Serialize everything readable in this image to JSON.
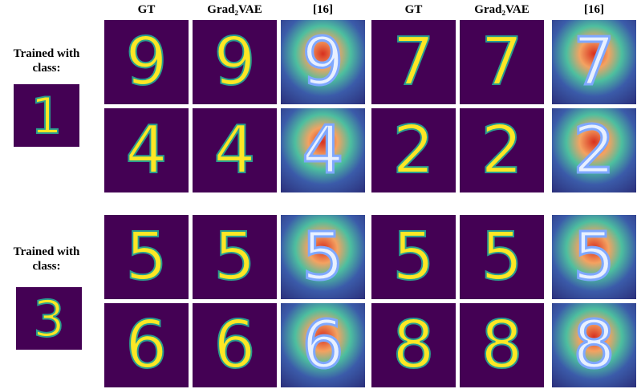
{
  "headers": [
    "GT",
    "Grad₂VAE",
    "[16]",
    "GT",
    "Grad₂VAE",
    "[16]"
  ],
  "groups": [
    {
      "label": "Trained with class:",
      "class": "1",
      "rows": [
        [
          "9",
          "9",
          "9",
          "7",
          "7",
          "7"
        ],
        [
          "4",
          "4",
          "4",
          "2",
          "2",
          "2"
        ]
      ]
    },
    {
      "label": "Trained with class:",
      "class": "3",
      "rows": [
        [
          "5",
          "5",
          "5",
          "5",
          "5",
          "5"
        ],
        [
          "6",
          "6",
          "6",
          "8",
          "8",
          "8"
        ]
      ]
    }
  ]
}
